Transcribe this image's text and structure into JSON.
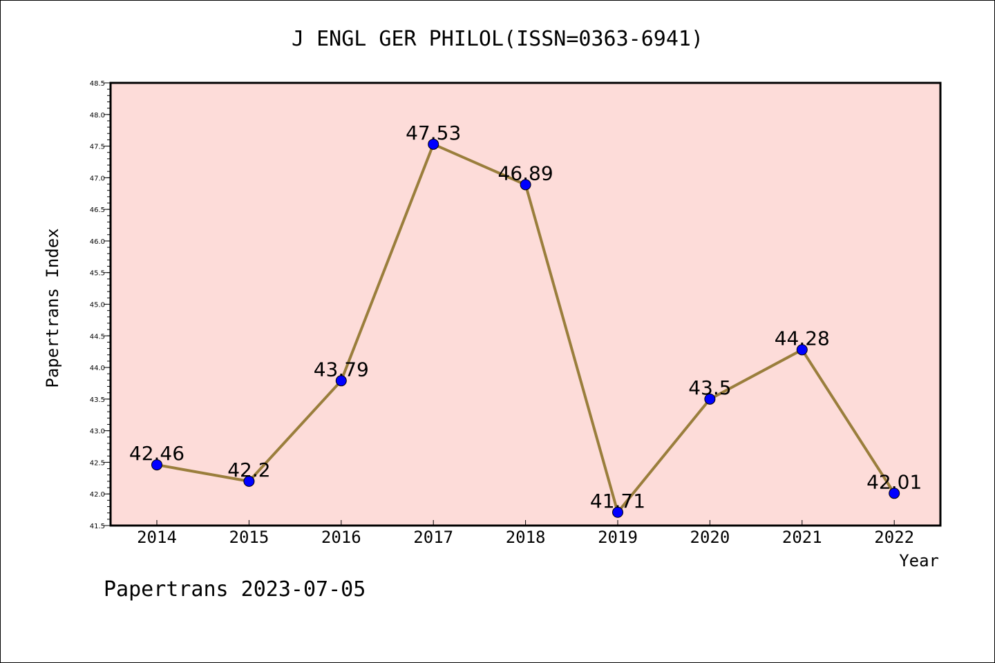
{
  "chart_data": {
    "type": "line",
    "title": "J ENGL GER PHILOL(ISSN=0363-6941)",
    "xlabel": "Year",
    "ylabel": "Papertrans Index",
    "categories": [
      "2014",
      "2015",
      "2016",
      "2017",
      "2018",
      "2019",
      "2020",
      "2021",
      "2022"
    ],
    "series": [
      {
        "values": [
          42.46,
          42.2,
          43.79,
          47.53,
          46.89,
          41.71,
          43.5,
          44.28,
          42.01
        ],
        "labels": [
          "42.46",
          "42.2",
          "43.79",
          "47.53",
          "46.89",
          "41.71",
          "43.5",
          "44.28",
          "42.01"
        ]
      }
    ],
    "ylim": [
      41.5,
      48.5
    ],
    "yticks": [
      "41.5",
      "42.0",
      "42.5",
      "43.0",
      "43.5",
      "44.0",
      "44.5",
      "45.0",
      "45.5",
      "46.0",
      "46.5",
      "47.0",
      "47.5",
      "48.0",
      "48.5"
    ],
    "grid": false,
    "colors": {
      "plot_background": "#fddcd9",
      "line": "#9a7e3c",
      "marker": "#0000ff"
    }
  },
  "footer": "Papertrans 2023-07-05"
}
